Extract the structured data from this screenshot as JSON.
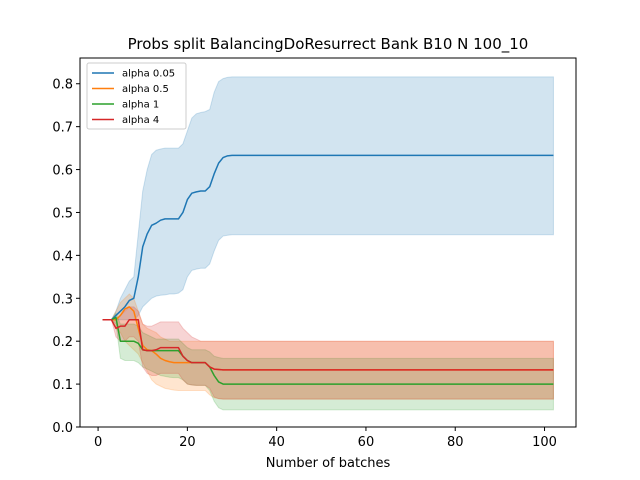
{
  "chart_data": {
    "type": "line",
    "title": "Probs split BalancingDoResurrect Bank B10 N 100_10",
    "xlabel": "Number of batches",
    "ylabel": "",
    "xlim": [
      -4.05,
      107.05
    ],
    "ylim": [
      0.0,
      0.86
    ],
    "xticks": [
      0,
      20,
      40,
      60,
      80,
      100
    ],
    "yticks": [
      0.0,
      0.1,
      0.2,
      0.3,
      0.4,
      0.5,
      0.6,
      0.7,
      0.8
    ],
    "grid": false,
    "legend_position": "top-left",
    "series": [
      {
        "name": "alpha 0.05",
        "color": "#1f77b4",
        "x": [
          1,
          2,
          3,
          4,
          5,
          6,
          7,
          8,
          9,
          10,
          11,
          12,
          13,
          14,
          15,
          16,
          17,
          18,
          19,
          20,
          21,
          22,
          23,
          24,
          25,
          26,
          27,
          28,
          29,
          30,
          35,
          40,
          60,
          80,
          102
        ],
        "y": [
          0.25,
          0.25,
          0.25,
          0.26,
          0.27,
          0.28,
          0.295,
          0.3,
          0.35,
          0.42,
          0.45,
          0.47,
          0.475,
          0.482,
          0.485,
          0.485,
          0.485,
          0.485,
          0.5,
          0.53,
          0.545,
          0.548,
          0.55,
          0.55,
          0.56,
          0.59,
          0.615,
          0.628,
          0.632,
          0.633,
          0.633,
          0.633,
          0.633,
          0.633,
          0.633
        ],
        "upper": [
          0.25,
          0.25,
          0.25,
          0.27,
          0.3,
          0.32,
          0.34,
          0.35,
          0.45,
          0.55,
          0.6,
          0.635,
          0.645,
          0.648,
          0.65,
          0.65,
          0.65,
          0.65,
          0.66,
          0.69,
          0.72,
          0.73,
          0.733,
          0.735,
          0.74,
          0.78,
          0.805,
          0.812,
          0.815,
          0.816,
          0.816,
          0.816,
          0.816,
          0.816,
          0.816
        ],
        "lower": [
          0.25,
          0.25,
          0.25,
          0.25,
          0.25,
          0.25,
          0.25,
          0.25,
          0.26,
          0.28,
          0.29,
          0.3,
          0.305,
          0.307,
          0.308,
          0.31,
          0.31,
          0.312,
          0.32,
          0.35,
          0.365,
          0.368,
          0.37,
          0.37,
          0.38,
          0.41,
          0.435,
          0.445,
          0.447,
          0.448,
          0.448,
          0.448,
          0.448,
          0.448,
          0.448
        ]
      },
      {
        "name": "alpha 0.5",
        "color": "#ff7f0e",
        "x": [
          1,
          2,
          3,
          4,
          5,
          6,
          7,
          8,
          9,
          10,
          11,
          12,
          13,
          14,
          15,
          16,
          17,
          18,
          19,
          20,
          21,
          22,
          23,
          24,
          25,
          26,
          27,
          28,
          29,
          30,
          35,
          40,
          60,
          80,
          102
        ],
        "y": [
          0.25,
          0.25,
          0.25,
          0.25,
          0.26,
          0.275,
          0.28,
          0.27,
          0.23,
          0.19,
          0.18,
          0.178,
          0.17,
          0.16,
          0.155,
          0.152,
          0.15,
          0.15,
          0.15,
          0.15,
          0.15,
          0.15,
          0.15,
          0.15,
          0.14,
          0.135,
          0.134,
          0.133,
          0.133,
          0.133,
          0.133,
          0.133,
          0.133,
          0.133,
          0.133
        ],
        "upper": [
          0.25,
          0.25,
          0.25,
          0.27,
          0.29,
          0.3,
          0.31,
          0.3,
          0.27,
          0.24,
          0.23,
          0.225,
          0.22,
          0.21,
          0.205,
          0.2,
          0.2,
          0.2,
          0.2,
          0.2,
          0.2,
          0.2,
          0.2,
          0.2,
          0.2,
          0.2,
          0.2,
          0.2,
          0.2,
          0.2,
          0.2,
          0.2,
          0.2,
          0.2,
          0.2
        ],
        "lower": [
          0.25,
          0.25,
          0.25,
          0.23,
          0.22,
          0.2,
          0.19,
          0.18,
          0.17,
          0.15,
          0.13,
          0.11,
          0.1,
          0.095,
          0.09,
          0.088,
          0.086,
          0.085,
          0.085,
          0.085,
          0.085,
          0.085,
          0.085,
          0.085,
          0.075,
          0.068,
          0.066,
          0.065,
          0.065,
          0.065,
          0.065,
          0.065,
          0.065,
          0.065,
          0.065
        ]
      },
      {
        "name": "alpha 1",
        "color": "#2ca02c",
        "x": [
          1,
          2,
          3,
          4,
          5,
          6,
          7,
          8,
          9,
          10,
          11,
          12,
          13,
          14,
          15,
          16,
          17,
          18,
          19,
          20,
          21,
          22,
          23,
          24,
          25,
          26,
          27,
          28,
          29,
          30,
          35,
          40,
          60,
          80,
          102
        ],
        "y": [
          0.25,
          0.25,
          0.25,
          0.255,
          0.2,
          0.2,
          0.2,
          0.2,
          0.195,
          0.18,
          0.178,
          0.178,
          0.178,
          0.178,
          0.178,
          0.178,
          0.178,
          0.178,
          0.165,
          0.155,
          0.15,
          0.15,
          0.15,
          0.15,
          0.14,
          0.12,
          0.105,
          0.1,
          0.1,
          0.1,
          0.1,
          0.1,
          0.1,
          0.1,
          0.1
        ],
        "upper": [
          0.25,
          0.25,
          0.25,
          0.265,
          0.24,
          0.24,
          0.24,
          0.24,
          0.235,
          0.22,
          0.215,
          0.21,
          0.205,
          0.205,
          0.205,
          0.205,
          0.205,
          0.205,
          0.195,
          0.185,
          0.18,
          0.18,
          0.18,
          0.18,
          0.175,
          0.165,
          0.162,
          0.16,
          0.16,
          0.16,
          0.16,
          0.16,
          0.16,
          0.16,
          0.16
        ],
        "lower": [
          0.25,
          0.25,
          0.25,
          0.24,
          0.16,
          0.155,
          0.155,
          0.155,
          0.15,
          0.14,
          0.135,
          0.13,
          0.125,
          0.12,
          0.118,
          0.116,
          0.115,
          0.115,
          0.11,
          0.1,
          0.098,
          0.097,
          0.097,
          0.097,
          0.085,
          0.06,
          0.045,
          0.04,
          0.04,
          0.04,
          0.04,
          0.04,
          0.04,
          0.04,
          0.04
        ]
      },
      {
        "name": "alpha 4",
        "color": "#d62728",
        "x": [
          1,
          2,
          3,
          4,
          5,
          6,
          7,
          8,
          9,
          10,
          11,
          12,
          13,
          14,
          15,
          16,
          17,
          18,
          19,
          20,
          21,
          22,
          23,
          24,
          25,
          26,
          27,
          28,
          29,
          30,
          35,
          40,
          60,
          80,
          102
        ],
        "y": [
          0.25,
          0.25,
          0.25,
          0.23,
          0.235,
          0.235,
          0.25,
          0.25,
          0.25,
          0.18,
          0.178,
          0.178,
          0.18,
          0.185,
          0.185,
          0.185,
          0.185,
          0.185,
          0.165,
          0.155,
          0.15,
          0.15,
          0.15,
          0.15,
          0.14,
          0.135,
          0.134,
          0.133,
          0.133,
          0.133,
          0.133,
          0.133,
          0.133,
          0.133,
          0.133
        ],
        "upper": [
          0.25,
          0.25,
          0.25,
          0.25,
          0.26,
          0.27,
          0.28,
          0.28,
          0.27,
          0.24,
          0.235,
          0.235,
          0.24,
          0.245,
          0.245,
          0.245,
          0.245,
          0.245,
          0.23,
          0.22,
          0.21,
          0.205,
          0.2,
          0.2,
          0.2,
          0.2,
          0.2,
          0.2,
          0.2,
          0.2,
          0.2,
          0.2,
          0.2,
          0.2,
          0.2
        ],
        "lower": [
          0.25,
          0.25,
          0.25,
          0.21,
          0.2,
          0.2,
          0.21,
          0.21,
          0.2,
          0.14,
          0.125,
          0.12,
          0.12,
          0.125,
          0.125,
          0.125,
          0.125,
          0.125,
          0.11,
          0.1,
          0.098,
          0.097,
          0.097,
          0.097,
          0.09,
          0.07,
          0.066,
          0.065,
          0.065,
          0.065,
          0.065,
          0.065,
          0.065,
          0.065,
          0.065
        ]
      }
    ]
  }
}
